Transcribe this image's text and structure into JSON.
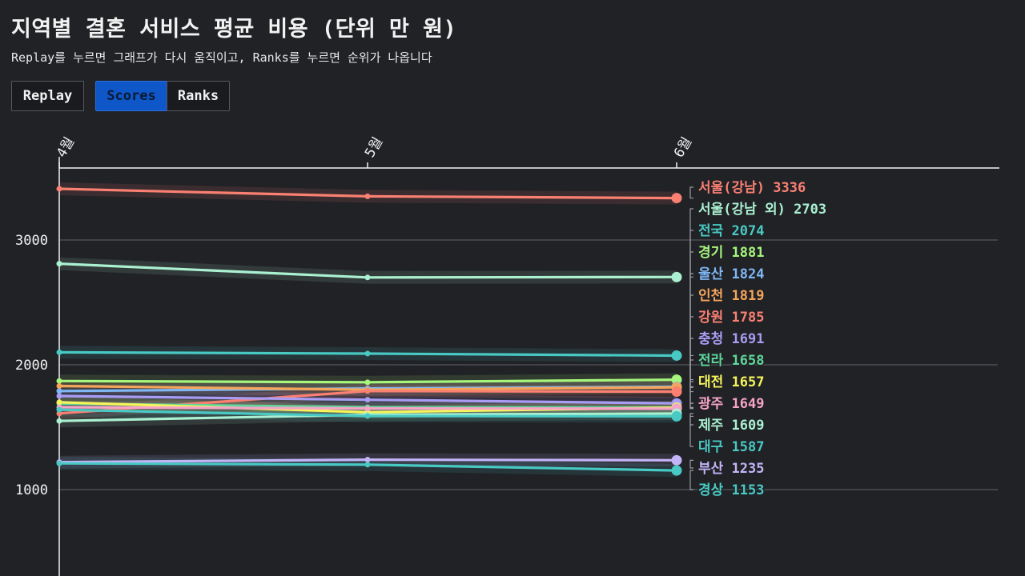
{
  "header": {
    "title": "지역별 결혼 서비스 평균 비용 (단위 만 원)",
    "subtitle": "Replay를 누르면 그래프가 다시 움직이고, Ranks를 누르면 순위가 나옵니다"
  },
  "controls": {
    "replay_label": "Replay",
    "scores_label": "Scores",
    "ranks_label": "Ranks",
    "active": "Scores"
  },
  "chart_data": {
    "type": "line",
    "categories": [
      "4월",
      "5월",
      "6월"
    ],
    "y_ticks": [
      1000,
      2000,
      3000
    ],
    "ylim": [
      450,
      3630
    ],
    "grid": true,
    "legend": "right-labels",
    "series": [
      {
        "name": "서울(강남)",
        "values": [
          3410,
          3350,
          3336
        ],
        "color": "#fa8072"
      },
      {
        "name": "서울(강남 외)",
        "values": [
          2810,
          2700,
          2703
        ],
        "color": "#aaf0d1"
      },
      {
        "name": "전국",
        "values": [
          2100,
          2090,
          2074
        ],
        "color": "#48c9c4"
      },
      {
        "name": "경기",
        "values": [
          1870,
          1860,
          1881
        ],
        "color": "#a6f57c"
      },
      {
        "name": "울산",
        "values": [
          1790,
          1810,
          1824
        ],
        "color": "#7fb7f5"
      },
      {
        "name": "인천",
        "values": [
          1830,
          1800,
          1819
        ],
        "color": "#f5a55a"
      },
      {
        "name": "강원",
        "values": [
          1610,
          1790,
          1785
        ],
        "color": "#fa8072"
      },
      {
        "name": "충청",
        "values": [
          1750,
          1720,
          1691
        ],
        "color": "#a99cf5"
      },
      {
        "name": "전라",
        "values": [
          1690,
          1660,
          1658
        ],
        "color": "#5fd69b"
      },
      {
        "name": "대전",
        "values": [
          1700,
          1620,
          1657
        ],
        "color": "#f5f55a"
      },
      {
        "name": "광주",
        "values": [
          1660,
          1650,
          1649
        ],
        "color": "#f5a3c7"
      },
      {
        "name": "제주",
        "values": [
          1550,
          1600,
          1609
        ],
        "color": "#aaf0d1"
      },
      {
        "name": "대구",
        "values": [
          1640,
          1590,
          1587
        ],
        "color": "#48c9c4"
      },
      {
        "name": "부산",
        "values": [
          1220,
          1240,
          1235
        ],
        "color": "#c3b4f7"
      },
      {
        "name": "경상",
        "values": [
          1210,
          1200,
          1153
        ],
        "color": "#48c9c4"
      }
    ]
  }
}
